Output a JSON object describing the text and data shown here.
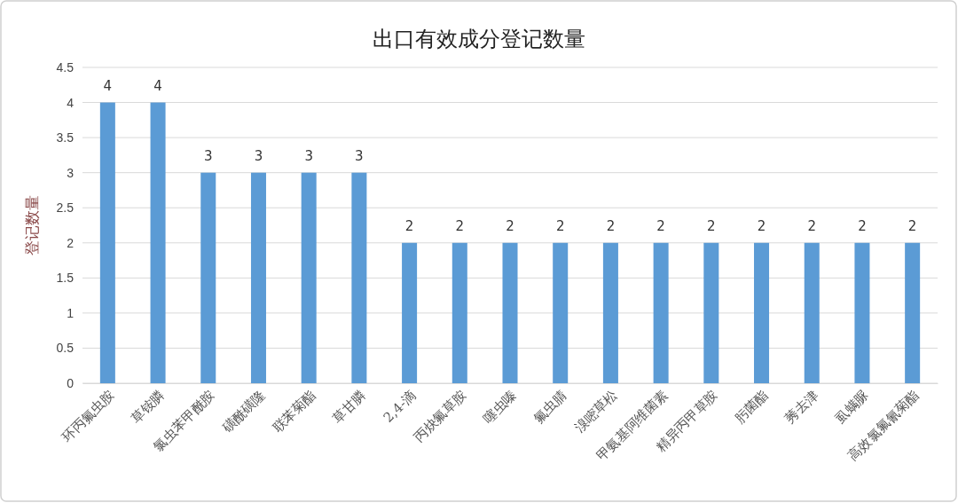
{
  "chart_data": {
    "type": "bar",
    "title": "出口有效成分登记数量",
    "ylabel": "登记数量",
    "categories": [
      "环丙氟虫胺",
      "草铵膦",
      "氯虫苯甲酰胺",
      "磺酰磺隆",
      "联苯菊酯",
      "草甘膦",
      "2,4-滴",
      "丙炔氟草胺",
      "噻虫嗪",
      "氟虫腈",
      "溴嘧草松",
      "甲氨基阿维菌素",
      "精异丙甲草胺",
      "肟菌酯",
      "莠去津",
      "虱螨脲",
      "高效氯氟氰菊酯"
    ],
    "values": [
      4,
      4,
      3,
      3,
      3,
      3,
      2,
      2,
      2,
      2,
      2,
      2,
      2,
      2,
      2,
      2,
      2
    ],
    "color": "#5b9bd5",
    "ylim": [
      0,
      4.5
    ],
    "yticks": [
      0,
      0.5,
      1,
      1.5,
      2,
      2.5,
      3,
      3.5,
      4,
      4.5
    ],
    "grid": "y",
    "data_labels": true
  }
}
